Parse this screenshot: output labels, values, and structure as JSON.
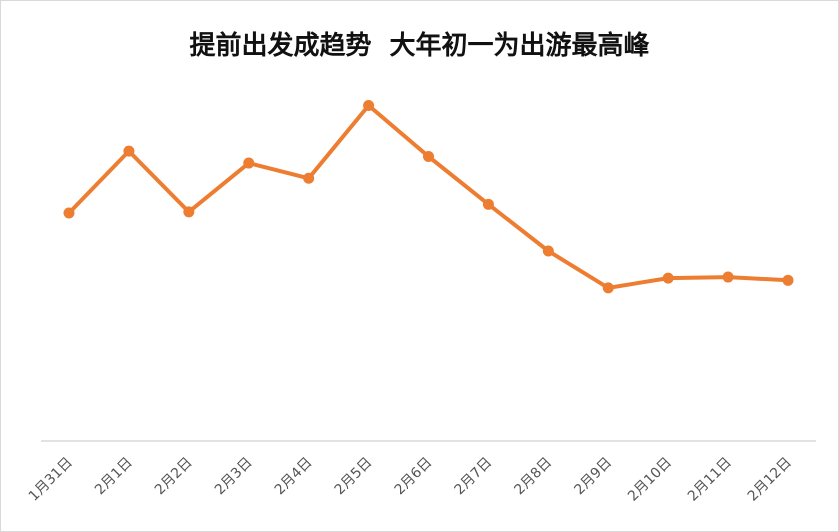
{
  "chart_data": {
    "type": "line",
    "title": "提前出发成趋势  大年初一为出游最高峰",
    "xlabel": "",
    "ylabel": "",
    "categories": [
      "1月31日",
      "2月1日",
      "2月2日",
      "2月3日",
      "2月4日",
      "2月5日",
      "2月6日",
      "2月7日",
      "2月8日",
      "2月9日",
      "2月10日",
      "2月11日",
      "2月12日"
    ],
    "series": [
      {
        "values": [
          210,
          267,
          211,
          256,
          242,
          309,
          262,
          218,
          175,
          141,
          150,
          151,
          148
        ],
        "color": "#ed7d31"
      }
    ],
    "ylim": [
      0,
      350
    ],
    "grid": false,
    "legend": "none",
    "axis_color": "#d9d9d9"
  }
}
